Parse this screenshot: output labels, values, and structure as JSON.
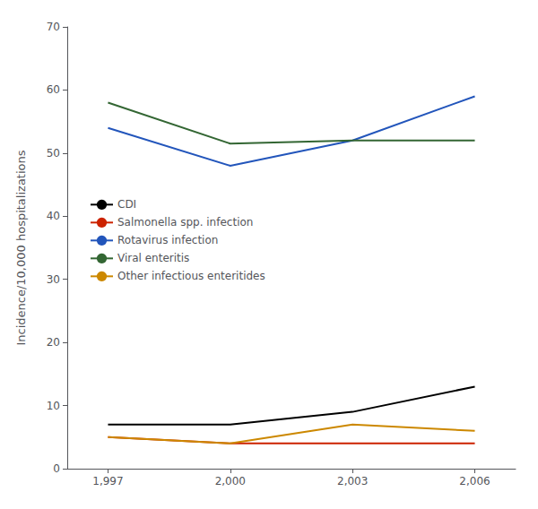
{
  "chart_data": {
    "type": "line",
    "x": [
      1997,
      2000,
      2003,
      2006
    ],
    "series": [
      {
        "name": "CDI",
        "color": "#000000",
        "values": [
          7.0,
          7.0,
          9.0,
          13.0
        ]
      },
      {
        "name": "Salmonella spp. infection",
        "color": "#cc2200",
        "values": [
          5.0,
          4.0,
          4.0,
          4.0
        ]
      },
      {
        "name": "Rotavirus infection",
        "color": "#2255bb",
        "values": [
          54.0,
          48.0,
          52.0,
          59.0
        ]
      },
      {
        "name": "Viral enteritis",
        "color": "#336633",
        "values": [
          58.0,
          51.5,
          52.0,
          52.0
        ]
      },
      {
        "name": "Other infectious enteritides",
        "color": "#cc8800",
        "values": [
          5.0,
          4.0,
          7.0,
          6.0
        ]
      }
    ],
    "xlim": [
      1996.0,
      2007.0
    ],
    "xticks": [
      1997,
      2000,
      2003,
      2006
    ],
    "ylim": [
      0,
      70
    ],
    "yticks": [
      0,
      10,
      20,
      30,
      40,
      50,
      60,
      70
    ],
    "ylabel": "Incidence/10,000 hospitalizations",
    "grid": false,
    "legend": "upper left"
  }
}
